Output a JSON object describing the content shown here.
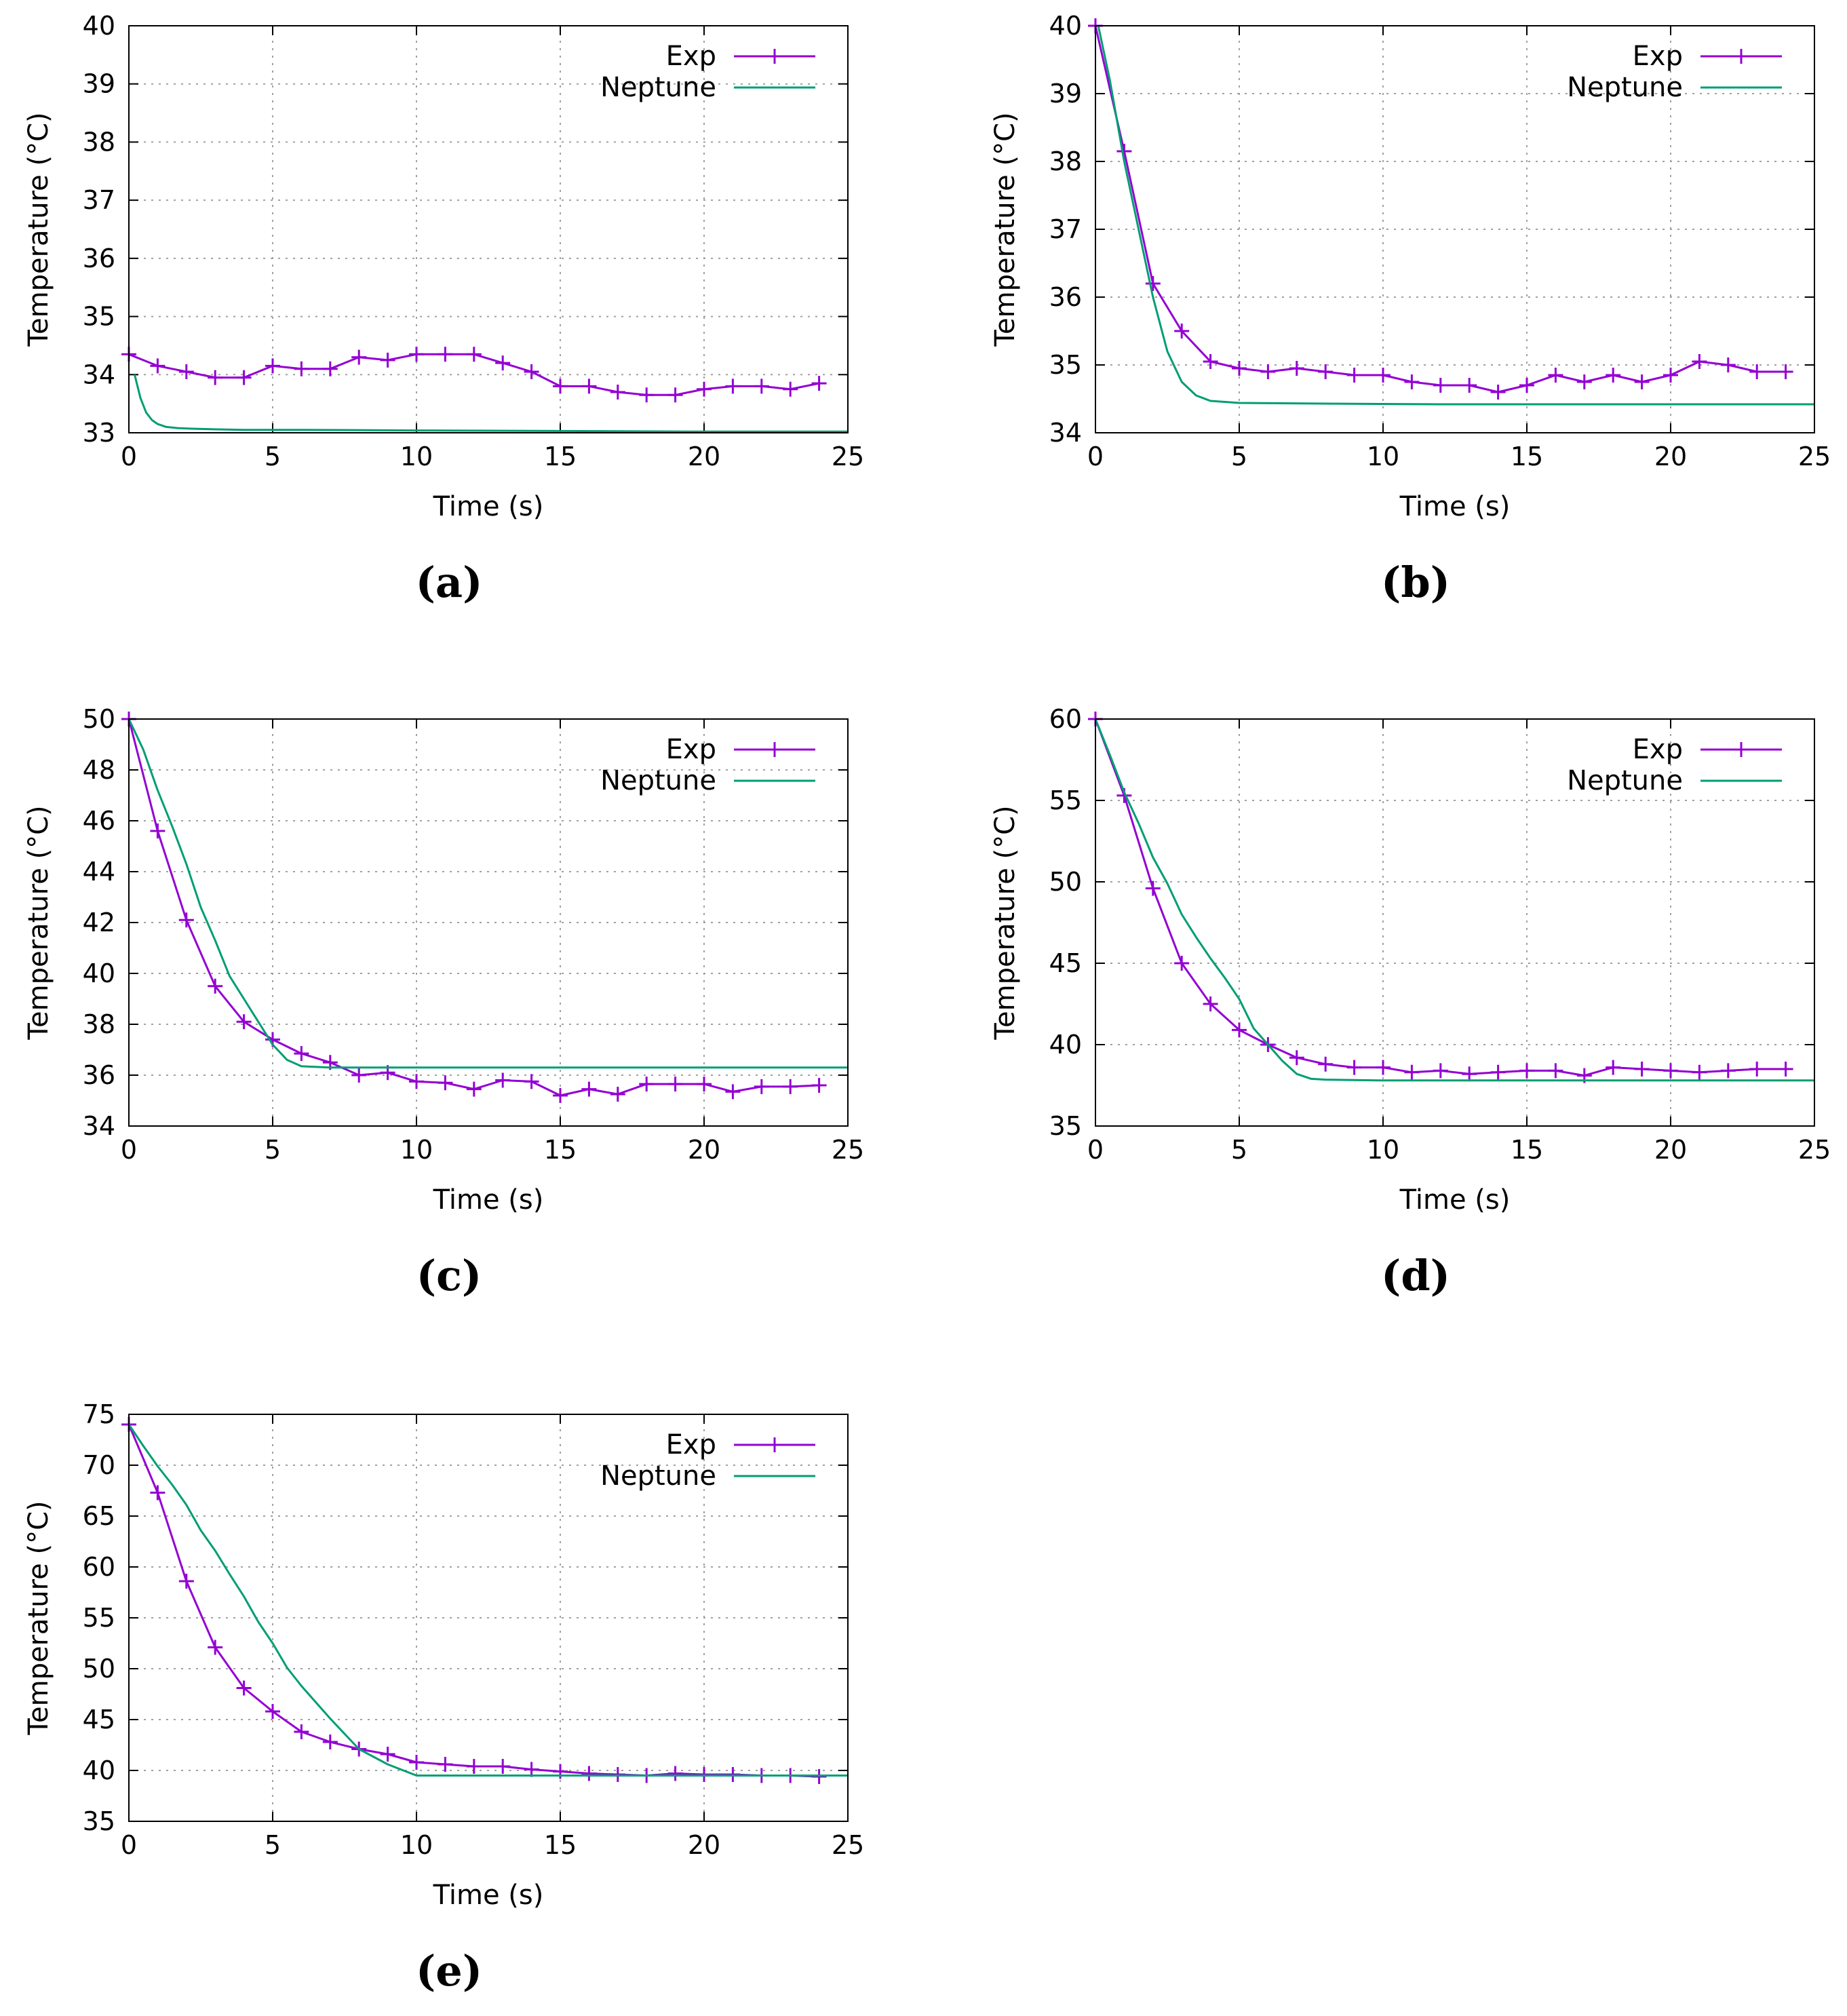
{
  "figure": {
    "panels": [
      {
        "id": "a",
        "label": "(a)"
      },
      {
        "id": "b",
        "label": "(b)"
      },
      {
        "id": "c",
        "label": "(c)"
      },
      {
        "id": "d",
        "label": "(d)"
      },
      {
        "id": "e",
        "label": "(e)"
      }
    ]
  },
  "colors": {
    "exp": "#9400d3",
    "neptune": "#009e73",
    "grid": "#a0a0a0",
    "axis": "#000000"
  },
  "chart_data": [
    {
      "id": "a",
      "type": "line",
      "title": "",
      "xlabel": "Time (s)",
      "ylabel": "Temperature (°C)",
      "xlim": [
        0,
        25
      ],
      "ylim": [
        33,
        40
      ],
      "xticks": [
        0,
        5,
        10,
        15,
        20,
        25
      ],
      "yticks": [
        33,
        34,
        35,
        36,
        37,
        38,
        39,
        40
      ],
      "grid": true,
      "legend_position": "top-right",
      "series": [
        {
          "name": "Exp",
          "marker": "plus",
          "x": [
            0,
            1,
            2,
            3,
            4,
            5,
            6,
            7,
            8,
            9,
            10,
            11,
            12,
            13,
            14,
            15,
            16,
            17,
            18,
            19,
            20,
            21,
            22,
            23,
            24
          ],
          "y": [
            34.35,
            34.15,
            34.05,
            33.95,
            33.95,
            34.15,
            34.1,
            34.1,
            34.3,
            34.25,
            34.35,
            34.35,
            34.35,
            34.2,
            34.05,
            33.8,
            33.8,
            33.7,
            33.65,
            33.65,
            33.75,
            33.8,
            33.8,
            33.75,
            33.85
          ]
        },
        {
          "name": "Neptune",
          "marker": "none",
          "x": [
            0.2,
            0.4,
            0.6,
            0.8,
            1.0,
            1.3,
            1.7,
            2.2,
            3,
            4,
            6,
            10,
            15,
            20,
            25
          ],
          "y": [
            34.0,
            33.6,
            33.35,
            33.22,
            33.15,
            33.1,
            33.08,
            33.07,
            33.06,
            33.05,
            33.05,
            33.04,
            33.03,
            33.02,
            33.02
          ]
        }
      ]
    },
    {
      "id": "b",
      "type": "line",
      "title": "",
      "xlabel": "Time (s)",
      "ylabel": "Temperature (°C)",
      "xlim": [
        0,
        25
      ],
      "ylim": [
        34,
        40
      ],
      "xticks": [
        0,
        5,
        10,
        15,
        20,
        25
      ],
      "yticks": [
        34,
        35,
        36,
        37,
        38,
        39,
        40
      ],
      "grid": true,
      "legend_position": "top-right",
      "series": [
        {
          "name": "Exp",
          "marker": "plus",
          "x": [
            0,
            1,
            2,
            3,
            4,
            5,
            6,
            7,
            8,
            9,
            10,
            11,
            12,
            13,
            14,
            15,
            16,
            17,
            18,
            19,
            20,
            21,
            22,
            23,
            24
          ],
          "y": [
            40.0,
            38.15,
            36.2,
            35.5,
            35.05,
            34.95,
            34.9,
            34.95,
            34.9,
            34.85,
            34.85,
            34.75,
            34.7,
            34.7,
            34.6,
            34.7,
            34.85,
            34.75,
            34.85,
            34.75,
            34.85,
            35.05,
            35.0,
            34.9,
            34.9
          ]
        },
        {
          "name": "Neptune",
          "marker": "none",
          "x": [
            0.1,
            0.5,
            1.0,
            1.5,
            2.0,
            2.5,
            3.0,
            3.5,
            4.0,
            5,
            8,
            12,
            18,
            25
          ],
          "y": [
            40.0,
            39.2,
            38.0,
            37.0,
            36.0,
            35.2,
            34.75,
            34.55,
            34.47,
            34.44,
            34.43,
            34.42,
            34.42,
            34.42
          ]
        }
      ]
    },
    {
      "id": "c",
      "type": "line",
      "title": "",
      "xlabel": "Time (s)",
      "ylabel": "Temperature (°C)",
      "xlim": [
        0,
        25
      ],
      "ylim": [
        34,
        50
      ],
      "xticks": [
        0,
        5,
        10,
        15,
        20,
        25
      ],
      "yticks": [
        34,
        36,
        38,
        40,
        42,
        44,
        46,
        48,
        50
      ],
      "grid": true,
      "legend_position": "top-right",
      "series": [
        {
          "name": "Exp",
          "marker": "plus",
          "x": [
            0,
            1,
            2,
            3,
            4,
            5,
            6,
            7,
            8,
            9,
            10,
            11,
            12,
            13,
            14,
            15,
            16,
            17,
            18,
            19,
            20,
            21,
            22,
            23,
            24
          ],
          "y": [
            50.0,
            45.6,
            42.1,
            39.5,
            38.1,
            37.4,
            36.85,
            36.5,
            36.0,
            36.1,
            35.75,
            35.7,
            35.45,
            35.8,
            35.75,
            35.2,
            35.45,
            35.25,
            35.65,
            35.65,
            35.65,
            35.35,
            35.55,
            35.55,
            35.6
          ]
        },
        {
          "name": "Neptune",
          "marker": "none",
          "x": [
            0,
            0.5,
            1,
            1.5,
            2,
            2.5,
            3,
            3.5,
            4,
            4.5,
            5,
            5.5,
            6,
            7,
            8,
            10,
            15,
            20,
            25
          ],
          "y": [
            50.0,
            48.8,
            47.2,
            45.8,
            44.3,
            42.6,
            41.3,
            39.9,
            39.0,
            38.1,
            37.2,
            36.6,
            36.35,
            36.3,
            36.3,
            36.3,
            36.3,
            36.3,
            36.3
          ]
        }
      ]
    },
    {
      "id": "d",
      "type": "line",
      "title": "",
      "xlabel": "Time (s)",
      "ylabel": "Temperature (°C)",
      "xlim": [
        0,
        25
      ],
      "ylim": [
        35,
        60
      ],
      "xticks": [
        0,
        5,
        10,
        15,
        20,
        25
      ],
      "yticks": [
        35,
        40,
        45,
        50,
        55,
        60
      ],
      "grid": true,
      "legend_position": "top-right",
      "series": [
        {
          "name": "Exp",
          "marker": "plus",
          "x": [
            0,
            1,
            2,
            3,
            4,
            5,
            6,
            7,
            8,
            9,
            10,
            11,
            12,
            13,
            14,
            15,
            16,
            17,
            18,
            19,
            20,
            21,
            22,
            23,
            24
          ],
          "y": [
            60.0,
            55.3,
            49.6,
            45.0,
            42.5,
            40.9,
            40.0,
            39.2,
            38.8,
            38.6,
            38.6,
            38.3,
            38.4,
            38.2,
            38.3,
            38.4,
            38.4,
            38.1,
            38.6,
            38.5,
            38.4,
            38.3,
            38.4,
            38.5,
            38.5
          ]
        },
        {
          "name": "Neptune",
          "marker": "none",
          "x": [
            0,
            0.5,
            1,
            1.5,
            2,
            2.5,
            3,
            3.5,
            4,
            4.5,
            5,
            5.5,
            6,
            6.5,
            7,
            7.5,
            8,
            10,
            15,
            20,
            25
          ],
          "y": [
            60.0,
            57.8,
            55.5,
            53.6,
            51.5,
            49.9,
            48.0,
            46.6,
            45.3,
            44.1,
            42.8,
            41.0,
            40.0,
            39.0,
            38.2,
            37.9,
            37.85,
            37.8,
            37.8,
            37.8,
            37.8
          ]
        }
      ]
    },
    {
      "id": "e",
      "type": "line",
      "title": "",
      "xlabel": "Time (s)",
      "ylabel": "Temperature (°C)",
      "xlim": [
        0,
        25
      ],
      "ylim": [
        35,
        75
      ],
      "xticks": [
        0,
        5,
        10,
        15,
        20,
        25
      ],
      "yticks": [
        35,
        40,
        45,
        50,
        55,
        60,
        65,
        70,
        75
      ],
      "grid": true,
      "legend_position": "top-right",
      "series": [
        {
          "name": "Exp",
          "marker": "plus",
          "x": [
            0,
            1,
            2,
            3,
            4,
            5,
            6,
            7,
            8,
            9,
            10,
            11,
            12,
            13,
            14,
            15,
            16,
            17,
            18,
            19,
            20,
            21,
            22,
            23,
            24
          ],
          "y": [
            74.0,
            67.3,
            58.6,
            52.1,
            48.1,
            45.8,
            43.8,
            42.8,
            42.1,
            41.6,
            40.8,
            40.6,
            40.4,
            40.4,
            40.1,
            39.9,
            39.7,
            39.6,
            39.5,
            39.7,
            39.6,
            39.6,
            39.5,
            39.5,
            39.4
          ]
        },
        {
          "name": "Neptune",
          "marker": "none",
          "x": [
            0,
            0.5,
            1,
            1.5,
            2,
            2.5,
            3,
            3.5,
            4,
            4.5,
            5,
            5.5,
            6,
            7,
            8,
            9,
            10,
            12,
            15,
            20,
            25
          ],
          "y": [
            74.0,
            71.9,
            69.9,
            68.1,
            66.1,
            63.6,
            61.6,
            59.3,
            57.1,
            54.6,
            52.5,
            50.1,
            48.3,
            45.1,
            42.1,
            40.6,
            39.5,
            39.5,
            39.5,
            39.5,
            39.5
          ]
        }
      ]
    }
  ]
}
